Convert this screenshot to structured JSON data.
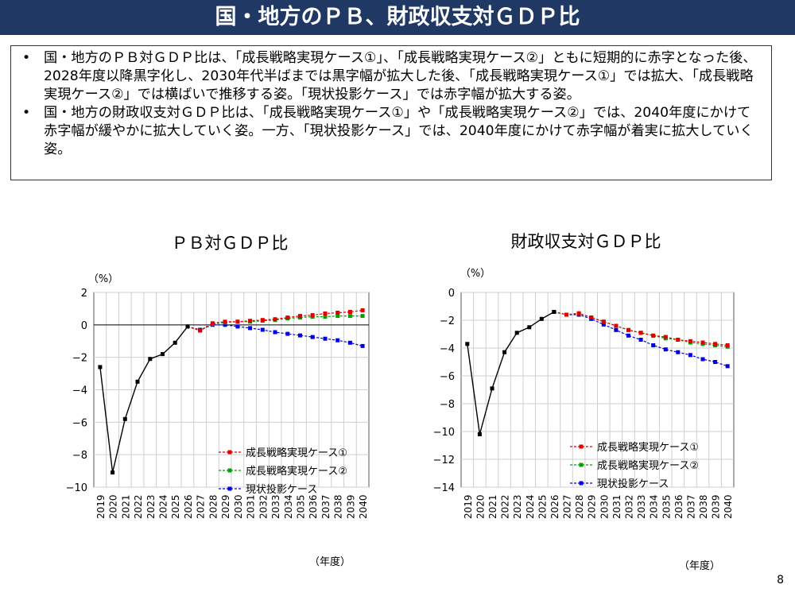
{
  "header": {
    "title": "国・地方のＰＢ、財政収支対ＧＤＰ比"
  },
  "summary": [
    {
      "bullet": "•",
      "text": "国・地方のＰＢ対ＧＤＰ比は、「成長戦略実現ケース①」、「成長戦略実現ケース②」ともに短期的に赤字となった後、2028年度以降黒字化し、2030年代半ばまでは黒字幅が拡大した後、「成長戦略実現ケース①」では拡大、「成長戦略実現ケース②」では横ばいで推移する姿。「現状投影ケース」では赤字幅が拡大する姿。"
    },
    {
      "bullet": "•",
      "text": "国・地方の財政収支対ＧＤＰ比は、「成長戦略実現ケース①」や「成長戦略実現ケース②」では、2040年度にかけて赤字幅が緩やかに拡大していく姿。一方、「現状投影ケース」では、2040年度にかけて赤字幅が着実に拡大していく姿。"
    }
  ],
  "page_number": "8",
  "colors": {
    "title_bg": "#1f3864",
    "history": "#000000",
    "case1": "#e00000",
    "case2": "#00a000",
    "baseline": "#0000e0"
  },
  "chart_data": [
    {
      "type": "line",
      "title": "ＰＢ対ＧＤＰ比",
      "ylabel": "（%）",
      "xlabel": "（年度）",
      "ylim": [
        -10,
        2
      ],
      "yticks": [
        2,
        0,
        -2,
        -4,
        -6,
        -8,
        -10
      ],
      "grid": true,
      "legend": "bottom-right",
      "categories": [
        "2019",
        "2020",
        "2021",
        "2022",
        "2023",
        "2024",
        "2025",
        "2026",
        "2027",
        "2028",
        "2029",
        "2030",
        "2031",
        "2032",
        "2033",
        "2034",
        "2035",
        "2036",
        "2037",
        "2038",
        "2039",
        "2040"
      ],
      "series": [
        {
          "values": [
            -2.6,
            -9.1,
            -5.8,
            -3.5,
            -2.1,
            -1.8,
            -1.1,
            -0.1,
            null,
            null,
            null,
            null,
            null,
            null,
            null,
            null,
            null,
            null,
            null,
            null,
            null,
            null
          ]
        },
        {
          "name": "成長戦略実現ケース①",
          "values": [
            null,
            null,
            null,
            null,
            null,
            null,
            null,
            -0.1,
            -0.35,
            0.1,
            0.2,
            0.2,
            0.25,
            0.3,
            0.35,
            0.45,
            0.55,
            0.6,
            0.7,
            0.75,
            0.8,
            0.9
          ]
        },
        {
          "name": "成長戦略実現ケース②",
          "values": [
            null,
            null,
            null,
            null,
            null,
            null,
            null,
            -0.1,
            -0.35,
            0.05,
            0.15,
            0.2,
            0.2,
            0.25,
            0.3,
            0.4,
            0.45,
            0.5,
            0.5,
            0.55,
            0.55,
            0.55
          ]
        },
        {
          "name": "現状投影ケース",
          "values": [
            null,
            null,
            null,
            null,
            null,
            null,
            null,
            -0.1,
            -0.3,
            0.0,
            0.0,
            -0.1,
            -0.2,
            -0.3,
            -0.45,
            -0.55,
            -0.65,
            -0.75,
            -0.85,
            -0.95,
            -1.1,
            -1.3
          ]
        }
      ]
    },
    {
      "type": "line",
      "title": "財政収支対ＧＤＰ比",
      "ylabel": "（%）",
      "xlabel": "（年度）",
      "ylim": [
        -14,
        0
      ],
      "yticks": [
        0,
        -2,
        -4,
        -6,
        -8,
        -10,
        -12,
        -14
      ],
      "grid": true,
      "legend": "bottom-right",
      "categories": [
        "2019",
        "2020",
        "2021",
        "2022",
        "2023",
        "2024",
        "2025",
        "2026",
        "2027",
        "2028",
        "2029",
        "2030",
        "2031",
        "2032",
        "2033",
        "2034",
        "2035",
        "2036",
        "2037",
        "2038",
        "2039",
        "2040"
      ],
      "series": [
        {
          "values": [
            -3.7,
            -10.2,
            -6.9,
            -4.3,
            -2.9,
            -2.5,
            -1.9,
            -1.4,
            null,
            null,
            null,
            null,
            null,
            null,
            null,
            null,
            null,
            null,
            null,
            null,
            null,
            null
          ]
        },
        {
          "name": "成長戦略実現ケース①",
          "values": [
            null,
            null,
            null,
            null,
            null,
            null,
            null,
            -1.4,
            -1.6,
            -1.5,
            -1.8,
            -2.1,
            -2.4,
            -2.7,
            -2.9,
            -3.1,
            -3.2,
            -3.4,
            -3.5,
            -3.6,
            -3.7,
            -3.8
          ]
        },
        {
          "name": "成長戦略実現ケース②",
          "values": [
            null,
            null,
            null,
            null,
            null,
            null,
            null,
            -1.4,
            -1.6,
            -1.5,
            -1.8,
            -2.1,
            -2.4,
            -2.7,
            -2.9,
            -3.1,
            -3.3,
            -3.4,
            -3.6,
            -3.7,
            -3.8,
            -3.9
          ]
        },
        {
          "name": "現状投影ケース",
          "values": [
            null,
            null,
            null,
            null,
            null,
            null,
            null,
            -1.4,
            -1.6,
            -1.6,
            -1.9,
            -2.3,
            -2.7,
            -3.1,
            -3.4,
            -3.8,
            -4.1,
            -4.3,
            -4.5,
            -4.8,
            -5.0,
            -5.3
          ]
        }
      ]
    }
  ]
}
